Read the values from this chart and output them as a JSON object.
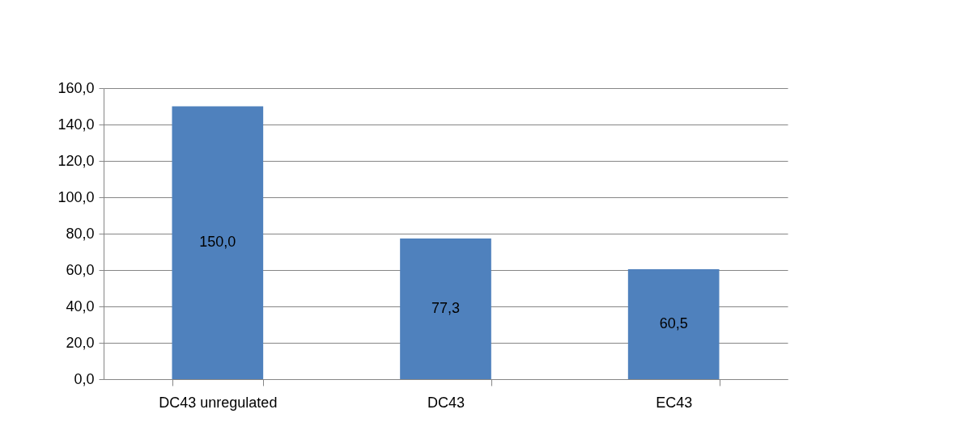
{
  "chart_data": {
    "type": "bar",
    "categories": [
      "DC43 unregulated",
      "DC43",
      "EC43"
    ],
    "values": [
      150.0,
      77.3,
      60.5
    ],
    "value_labels": [
      "150,0",
      "77,3",
      "60,5"
    ],
    "color": "#4f81bd",
    "ylim": [
      0,
      160
    ],
    "yticks": [
      {
        "value": 0,
        "label": "0,0"
      },
      {
        "value": 20,
        "label": "20,0"
      },
      {
        "value": 40,
        "label": "40,0"
      },
      {
        "value": 60,
        "label": "60,0"
      },
      {
        "value": 80,
        "label": "80,0"
      },
      {
        "value": 100,
        "label": "100,0"
      },
      {
        "value": 120,
        "label": "120,0"
      },
      {
        "value": 140,
        "label": "140,0"
      },
      {
        "value": 160,
        "label": "160,0"
      }
    ],
    "grid": "y"
  }
}
